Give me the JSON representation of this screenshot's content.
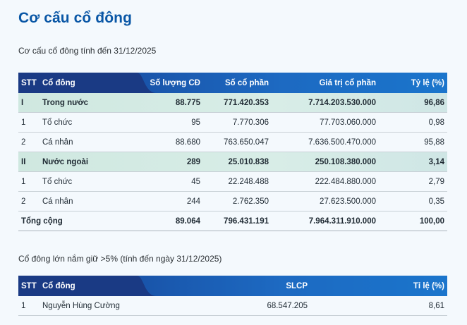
{
  "page": {
    "title": "Cơ cấu cổ đông",
    "subtitle": "Cơ cấu cổ đông tính đến 31/12/2025",
    "subtitle2": "Cổ đông lớn nắm giữ >5% (tính đến ngày 31/12/2025)"
  },
  "structure_table": {
    "headers": {
      "stt": "STT",
      "name": "Cổ đông",
      "holders": "Số lượng CĐ",
      "shares": "Số cổ phần",
      "value": "Giá trị cổ phần",
      "ratio": "Tỷ lệ (%)"
    },
    "rows": [
      {
        "stt": "I",
        "name": "Trong nước",
        "holders": "88.775",
        "shares": "771.420.353",
        "value": "7.714.203.530.000",
        "ratio": "96,86"
      },
      {
        "stt": "1",
        "name": "Tổ chức",
        "holders": "95",
        "shares": "7.770.306",
        "value": "77.703.060.000",
        "ratio": "0,98"
      },
      {
        "stt": "2",
        "name": "Cá nhân",
        "holders": "88.680",
        "shares": "763.650.047",
        "value": "7.636.500.470.000",
        "ratio": "95,88"
      },
      {
        "stt": "II",
        "name": "Nước ngoài",
        "holders": "289",
        "shares": "25.010.838",
        "value": "250.108.380.000",
        "ratio": "3,14"
      },
      {
        "stt": "1",
        "name": "Tổ chức",
        "holders": "45",
        "shares": "22.248.488",
        "value": "222.484.880.000",
        "ratio": "2,79"
      },
      {
        "stt": "2",
        "name": "Cá nhân",
        "holders": "244",
        "shares": "2.762.350",
        "value": "27.623.500.000",
        "ratio": "0,35"
      }
    ],
    "total": {
      "label": "Tổng cộng",
      "holders": "89.064",
      "shares": "796.431.191",
      "value": "7.964.311.910.000",
      "ratio": "100,00"
    }
  },
  "major_table": {
    "headers": {
      "stt": "STT",
      "name": "Cổ đông",
      "slcp": "SLCP",
      "ratio": "Tỉ lệ (%)"
    },
    "rows": [
      {
        "stt": "1",
        "name": "Nguyễn Hùng Cường",
        "slcp": "68.547.205",
        "ratio": "8,61"
      }
    ]
  },
  "colors": {
    "title": "#0a57a6",
    "header_dark": "#1b3a86",
    "header_light": "#1c7fd6",
    "group_row": "#d8ede7",
    "background": "#f4f9fd"
  }
}
